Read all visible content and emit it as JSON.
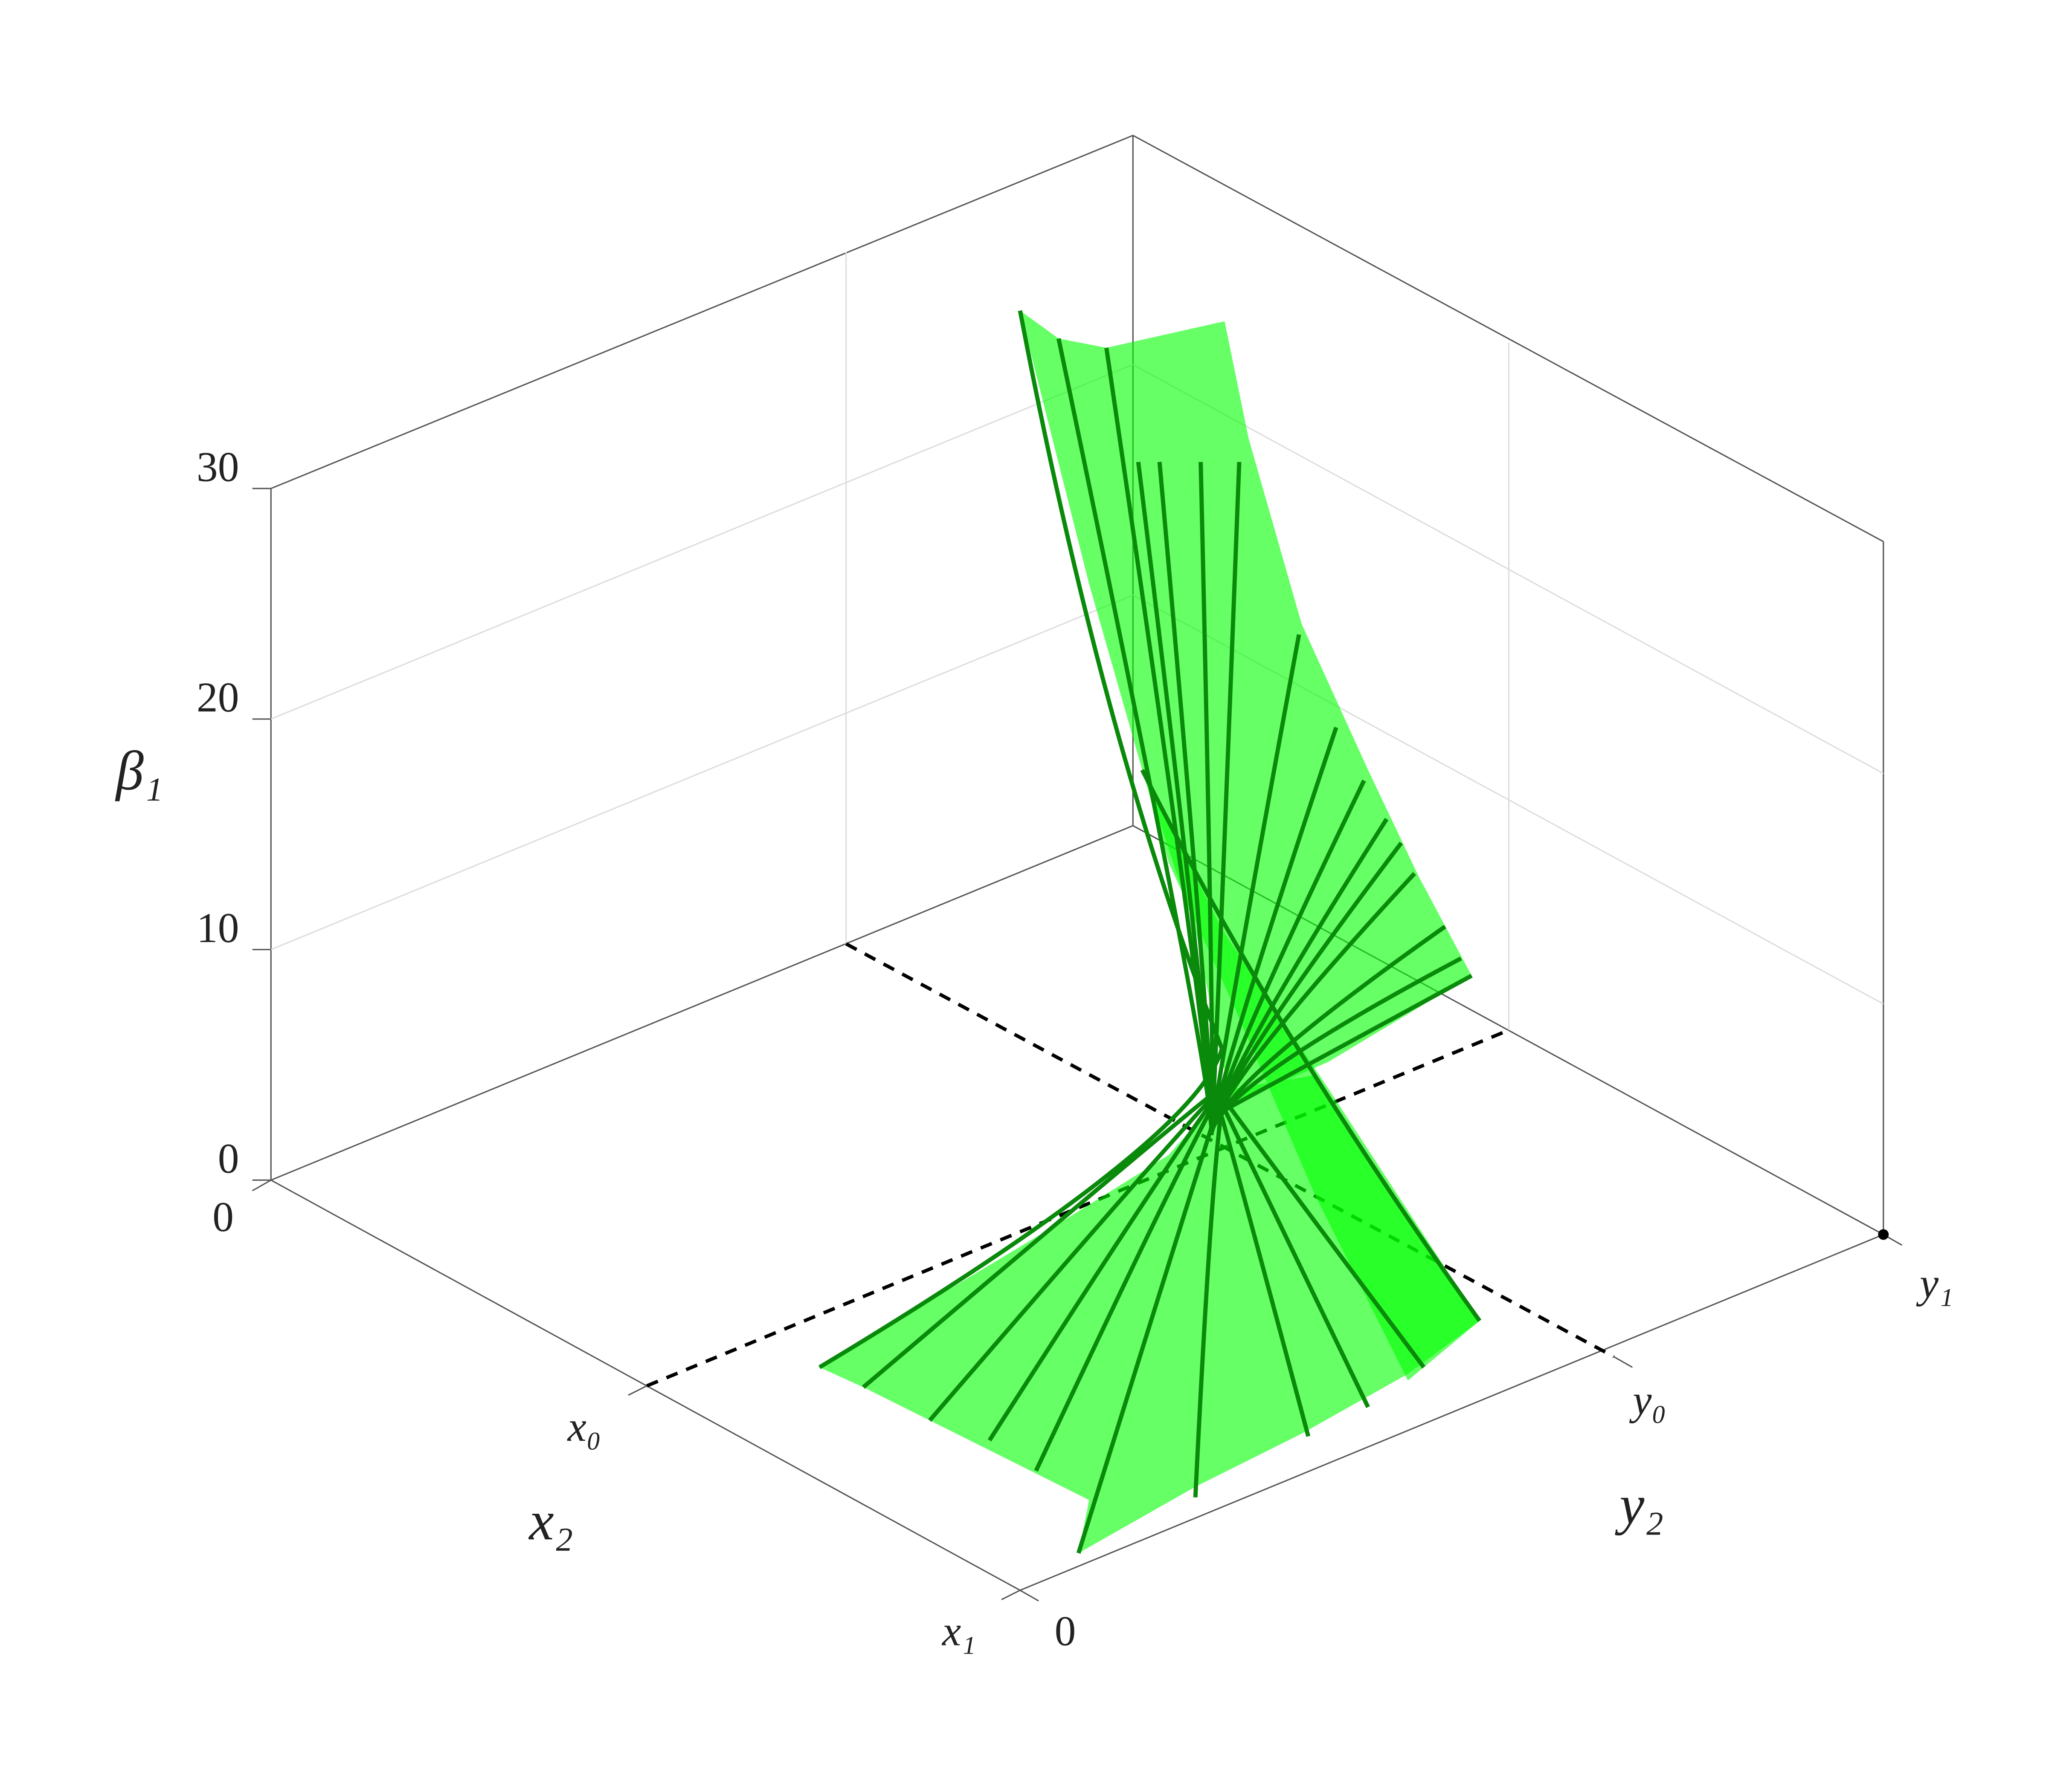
{
  "chart_data": {
    "type": "surface3d",
    "zlabel": "β₁",
    "xlabel": "x₂",
    "ylabel": "y₂",
    "zlim": [
      0,
      30
    ],
    "zticks": [
      0,
      10,
      20,
      30
    ],
    "xtick_labels": [
      "0",
      "x₀",
      "x₁"
    ],
    "ytick_labels": [
      "0",
      "y₀",
      "y₁"
    ],
    "surface_color": "#00ff00",
    "grid": true
  }
}
